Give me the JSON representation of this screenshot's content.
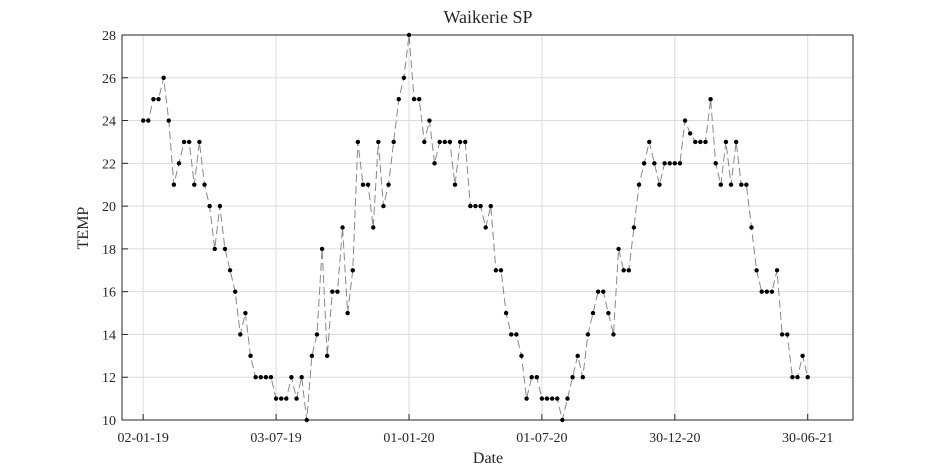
{
  "chart_data": {
    "type": "line",
    "title": "Waikerie SP",
    "x_label": "Date",
    "y_label": "TEMP",
    "x": [
      "2019-01-02",
      "2019-01-09",
      "2019-01-16",
      "2019-01-23",
      "2019-01-30",
      "2019-02-06",
      "2019-02-13",
      "2019-02-20",
      "2019-02-27",
      "2019-03-06",
      "2019-03-13",
      "2019-03-20",
      "2019-03-27",
      "2019-04-03",
      "2019-04-10",
      "2019-04-17",
      "2019-04-24",
      "2019-05-01",
      "2019-05-08",
      "2019-05-15",
      "2019-05-22",
      "2019-05-29",
      "2019-06-05",
      "2019-06-12",
      "2019-06-19",
      "2019-06-26",
      "2019-07-03",
      "2019-07-10",
      "2019-07-17",
      "2019-07-24",
      "2019-07-31",
      "2019-08-07",
      "2019-08-14",
      "2019-08-21",
      "2019-08-28",
      "2019-09-04",
      "2019-09-11",
      "2019-09-18",
      "2019-09-25",
      "2019-10-02",
      "2019-10-09",
      "2019-10-16",
      "2019-10-23",
      "2019-10-30",
      "2019-11-06",
      "2019-11-13",
      "2019-11-20",
      "2019-11-27",
      "2019-12-04",
      "2019-12-11",
      "2019-12-18",
      "2019-12-25",
      "2020-01-01",
      "2020-01-08",
      "2020-01-15",
      "2020-01-22",
      "2020-01-29",
      "2020-02-05",
      "2020-02-12",
      "2020-02-19",
      "2020-02-26",
      "2020-03-04",
      "2020-03-11",
      "2020-03-18",
      "2020-03-25",
      "2020-04-01",
      "2020-04-08",
      "2020-04-15",
      "2020-04-22",
      "2020-04-29",
      "2020-05-06",
      "2020-05-13",
      "2020-05-20",
      "2020-05-27",
      "2020-06-03",
      "2020-06-10",
      "2020-06-17",
      "2020-06-24",
      "2020-07-01",
      "2020-07-08",
      "2020-07-15",
      "2020-07-22",
      "2020-07-29",
      "2020-08-05",
      "2020-08-12",
      "2020-08-19",
      "2020-08-26",
      "2020-09-02",
      "2020-09-09",
      "2020-09-16",
      "2020-09-23",
      "2020-09-30",
      "2020-10-07",
      "2020-10-14",
      "2020-10-21",
      "2020-10-28",
      "2020-11-04",
      "2020-11-11",
      "2020-11-18",
      "2020-11-25",
      "2020-12-02",
      "2020-12-09",
      "2020-12-16",
      "2020-12-23",
      "2020-12-30",
      "2021-01-06",
      "2021-01-13",
      "2021-01-20",
      "2021-01-27",
      "2021-02-03",
      "2021-02-10",
      "2021-02-17",
      "2021-02-24",
      "2021-03-03",
      "2021-03-10",
      "2021-03-17",
      "2021-03-24",
      "2021-03-31",
      "2021-04-07",
      "2021-04-14",
      "2021-04-21",
      "2021-04-28",
      "2021-05-05",
      "2021-05-12",
      "2021-05-19",
      "2021-05-26",
      "2021-06-02",
      "2021-06-09",
      "2021-06-16",
      "2021-06-23",
      "2021-06-30"
    ],
    "series": [
      {
        "name": "TEMP",
        "color": "#000000",
        "line_color": "#888888",
        "values": [
          24,
          24,
          25,
          25,
          26,
          24,
          21,
          22,
          23,
          23,
          21,
          23,
          21,
          20,
          18,
          20,
          18,
          17,
          16,
          14,
          15,
          13,
          12,
          12,
          12,
          12,
          11,
          11,
          11,
          12,
          11,
          12,
          10,
          13,
          14,
          18,
          13,
          16,
          16,
          19,
          15,
          17,
          23,
          21,
          21,
          19,
          23,
          20,
          21,
          23,
          25,
          26,
          28,
          25,
          25,
          23,
          24,
          22,
          23,
          23,
          23,
          21,
          23,
          23,
          20,
          20,
          20,
          19,
          20,
          17,
          17,
          15,
          14,
          14,
          13,
          11,
          12,
          12,
          11,
          11,
          11,
          11,
          10,
          11,
          12,
          13,
          12,
          14,
          15,
          16,
          16,
          15,
          14,
          18,
          17,
          17,
          19,
          21,
          22,
          23,
          22,
          21,
          22,
          22,
          22,
          22,
          24,
          23.4,
          23,
          23,
          23,
          25,
          22,
          21,
          23,
          21,
          23,
          21,
          21,
          19,
          17,
          16,
          16,
          16,
          17,
          14,
          14,
          12,
          12,
          13,
          12
        ]
      }
    ],
    "xlim": [
      "2018-12-04",
      "2021-08-31"
    ],
    "xticks": [
      {
        "value": "2019-01-02",
        "label": "02-01-19"
      },
      {
        "value": "2019-07-03",
        "label": "03-07-19"
      },
      {
        "value": "2020-01-01",
        "label": "01-01-20"
      },
      {
        "value": "2020-07-01",
        "label": "01-07-20"
      },
      {
        "value": "2020-12-30",
        "label": "30-12-20"
      },
      {
        "value": "2021-06-30",
        "label": "30-06-21"
      }
    ],
    "ylim": [
      10,
      28
    ],
    "yticks": [
      10,
      12,
      14,
      16,
      18,
      20,
      22,
      24,
      26,
      28
    ],
    "grid": true
  }
}
